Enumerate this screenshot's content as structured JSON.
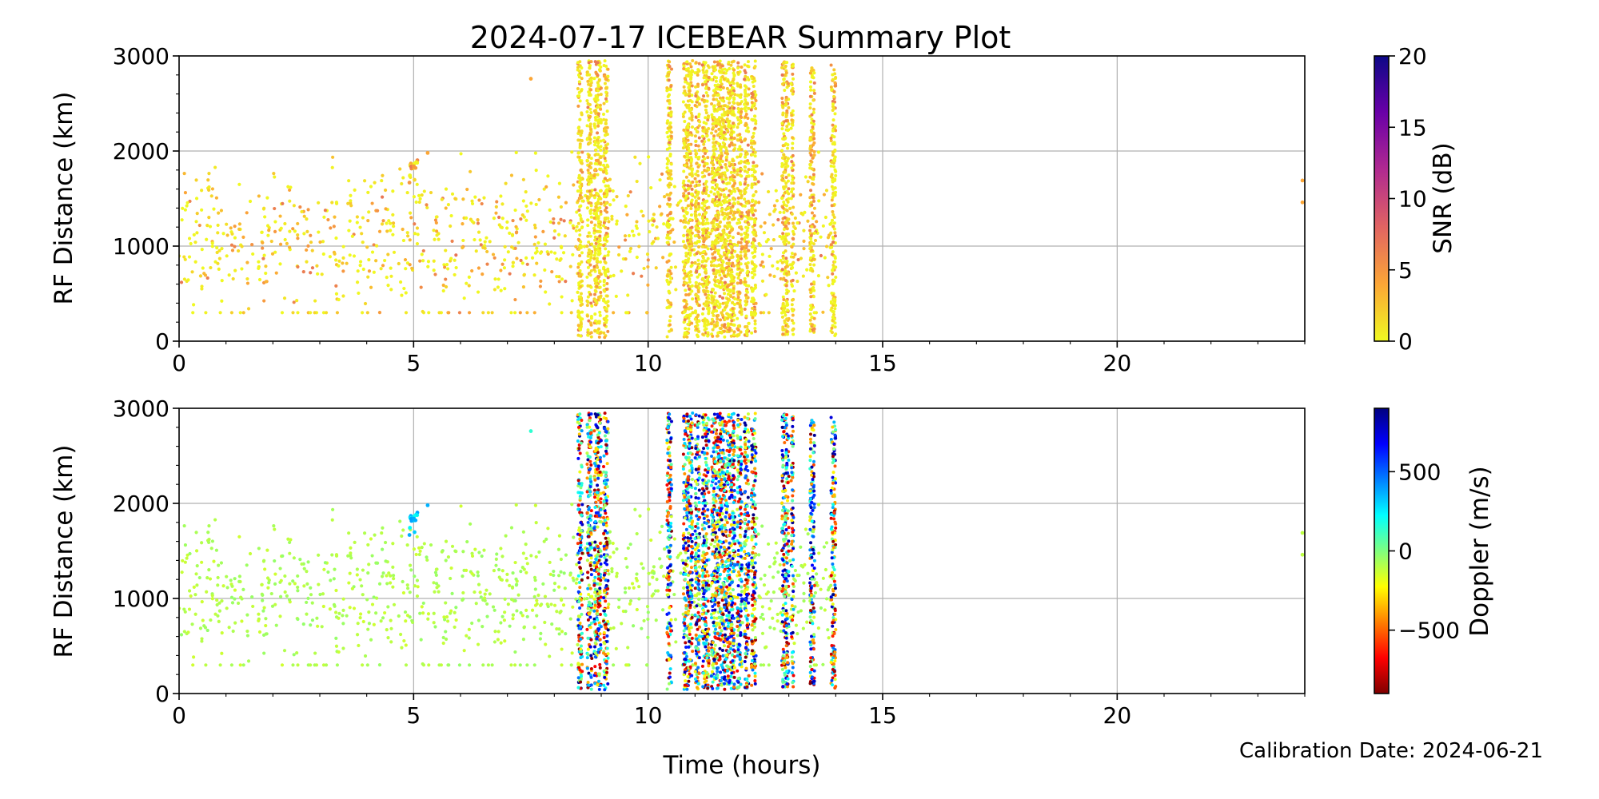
{
  "page": {
    "title": "2024-07-17 ICEBEAR Summary Plot",
    "calibration_note": "Calibration Date: 2024-06-21"
  },
  "chart_data": [
    {
      "type": "scatter",
      "id": "snr-panel",
      "ylabel": "RF Distance (km)",
      "xlabel": "",
      "xlim": [
        0,
        24
      ],
      "ylim": [
        0,
        3000
      ],
      "xticks": [
        0,
        5,
        10,
        15,
        20
      ],
      "yticks": [
        0,
        1000,
        2000,
        3000
      ],
      "grid": true,
      "colorbar": {
        "label": "SNR (dB)",
        "range": [
          0,
          20
        ],
        "ticks": [
          0,
          5,
          10,
          15,
          20
        ],
        "colormap": "plasma_r",
        "stops": [
          "#f0f921",
          "#fca636",
          "#e16462",
          "#b12a90",
          "#6a00a8",
          "#0d0887"
        ]
      },
      "activity_bands": [
        [
          8.5,
          8.6
        ],
        [
          8.7,
          8.8
        ],
        [
          8.85,
          9.0
        ],
        [
          9.05,
          9.15
        ],
        [
          10.4,
          10.5
        ],
        [
          10.75,
          10.95
        ],
        [
          11.0,
          11.1
        ],
        [
          11.15,
          11.3
        ],
        [
          11.35,
          11.85
        ],
        [
          11.9,
          12.0
        ],
        [
          12.05,
          12.15
        ],
        [
          12.2,
          12.3
        ],
        [
          12.85,
          13.0
        ],
        [
          13.05,
          13.1
        ],
        [
          13.45,
          13.55
        ],
        [
          13.9,
          14.0
        ]
      ],
      "scatter_extent": {
        "x": [
          0,
          14
        ],
        "y": [
          300,
          2000
        ]
      },
      "outlier_points": [
        [
          23.95,
          1690
        ],
        [
          23.95,
          1460
        ],
        [
          7.5,
          2760
        ],
        [
          5.3,
          1980
        ]
      ]
    },
    {
      "type": "scatter",
      "id": "doppler-panel",
      "ylabel": "RF Distance (km)",
      "xlabel": "Time (hours)",
      "xlim": [
        0,
        24
      ],
      "ylim": [
        0,
        3000
      ],
      "xticks": [
        0,
        5,
        10,
        15,
        20
      ],
      "yticks": [
        0,
        1000,
        2000,
        3000
      ],
      "grid": true,
      "colorbar": {
        "label": "Doppler (m/s)",
        "range": [
          -900,
          900
        ],
        "ticks": [
          -500,
          0,
          500
        ],
        "tick_labels": [
          "−500",
          "0",
          "500"
        ],
        "colormap": "jet_r",
        "stops": [
          "#7f0000",
          "#ff0000",
          "#ff7f00",
          "#ffff00",
          "#7fff7f",
          "#00ffff",
          "#007fff",
          "#0000ff",
          "#00007f"
        ]
      },
      "activity_bands": [
        [
          8.5,
          8.6
        ],
        [
          8.7,
          8.8
        ],
        [
          8.85,
          9.0
        ],
        [
          9.05,
          9.15
        ],
        [
          10.4,
          10.5
        ],
        [
          10.75,
          10.95
        ],
        [
          11.0,
          11.1
        ],
        [
          11.15,
          11.3
        ],
        [
          11.35,
          11.85
        ],
        [
          11.9,
          12.0
        ],
        [
          12.05,
          12.15
        ],
        [
          12.2,
          12.3
        ],
        [
          12.85,
          13.0
        ],
        [
          13.05,
          13.1
        ],
        [
          13.45,
          13.55
        ],
        [
          13.9,
          14.0
        ]
      ],
      "scatter_extent": {
        "x": [
          0,
          14
        ],
        "y": [
          300,
          2000
        ]
      },
      "outlier_points": [
        [
          23.95,
          1690
        ],
        [
          23.95,
          1460
        ],
        [
          7.5,
          2760
        ],
        [
          5.3,
          1980
        ]
      ],
      "blue_cluster": {
        "x": [
          4.9,
          5.1
        ],
        "y": [
          1650,
          1950
        ]
      }
    }
  ]
}
